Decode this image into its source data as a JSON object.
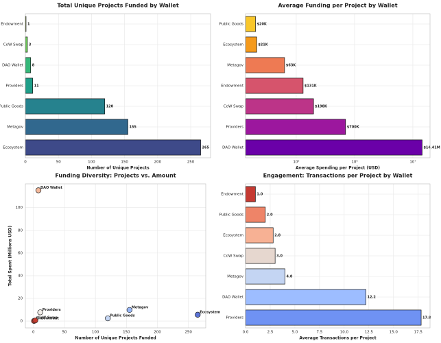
{
  "chart_data": [
    {
      "type": "barh",
      "title": "Total Unique Projects Funded by Wallet",
      "xlabel": "Number of Unique Projects",
      "categories": [
        "Endowment",
        "CoW Swap",
        "DAO Wallet",
        "Providers",
        "Public Goods",
        "Metagov",
        "Ecosystem"
      ],
      "values": [
        1,
        3,
        8,
        11,
        120,
        155,
        265
      ],
      "colors": [
        "#b5de2b",
        "#6ece58",
        "#35b779",
        "#1f9e89",
        "#26828e",
        "#31688e",
        "#3e4a89"
      ],
      "xlim": [
        0,
        280
      ],
      "xticks": [
        0,
        50,
        100,
        150,
        200,
        250
      ],
      "grid": true
    },
    {
      "type": "barh",
      "title": "Average Funding per Project by Wallet",
      "xlabel": "Average Spending per Project (USD)",
      "categories": [
        "Public Goods",
        "Ecosystem",
        "Metagov",
        "Endowment",
        "CoW Swap",
        "Providers",
        "DAO Wallet"
      ],
      "values": [
        20000,
        21000,
        63000,
        131000,
        198000,
        700000,
        14410000
      ],
      "value_labels": [
        "$20K",
        "$21K",
        "$63K",
        "$131K",
        "$198K",
        "$700K",
        "$14.41M"
      ],
      "colors": [
        "#f9c72b",
        "#f59a1b",
        "#ee7a53",
        "#d6546c",
        "#bc3488",
        "#9c179e",
        "#6a00a8"
      ],
      "xscale": "log",
      "xlim": [
        13500,
        19700000
      ],
      "xticks": [
        {
          "value": 100000,
          "label": "10⁵"
        },
        {
          "value": 1000000,
          "label": "10⁶"
        },
        {
          "value": 10000000,
          "label": "10⁷"
        }
      ],
      "grid": true
    },
    {
      "type": "scatter",
      "title": "Funding Diversity: Projects vs. Amount",
      "xlabel": "Number of Unique Projects Funded",
      "ylabel": "Total Spent (Millions USD)",
      "categories": [
        "DAO Wallet",
        "Providers",
        "Endowment",
        "CoW Swap",
        "Public Goods",
        "Metagov",
        "Ecosystem"
      ],
      "x": [
        8,
        11,
        1,
        3,
        120,
        155,
        265
      ],
      "values": [
        115.3,
        7.7,
        0.131,
        0.594,
        2.4,
        9.8,
        5.6
      ],
      "colors": [
        "#f4b89a",
        "#f0ece8",
        "#c0382b",
        "#c53c2f",
        "#c4d5f3",
        "#97b6f5",
        "#5b73d6"
      ],
      "xlim": [
        -13,
        278
      ],
      "xticks": [
        0,
        50,
        100,
        150,
        200,
        250
      ],
      "ylim": [
        -6,
        121
      ],
      "yticks": [
        0,
        20,
        40,
        60,
        80,
        100
      ],
      "grid": true
    },
    {
      "type": "barh",
      "title": "Engagement: Transactions per Project by Wallet",
      "xlabel": "Average Transactions per Project",
      "categories": [
        "Endowment",
        "Public Goods",
        "Ecosystem",
        "CoW Swap",
        "Metagov",
        "DAO Wallet",
        "Providers"
      ],
      "values": [
        1.0,
        2.0,
        2.8,
        3.0,
        4.0,
        12.2,
        17.8
      ],
      "value_labels": [
        "1.0",
        "2.0",
        "2.8",
        "3.0",
        "4.0",
        "12.2",
        "17.8"
      ],
      "colors": [
        "#c53a32",
        "#ee8468",
        "#f7b194",
        "#e6d7cf",
        "#c4d5f3",
        "#9dbdff",
        "#6f92f3"
      ],
      "xlim": [
        0,
        18.7
      ],
      "xticks": [
        {
          "value": 0,
          "label": "0.0"
        },
        {
          "value": 2.5,
          "label": "2.5"
        },
        {
          "value": 5,
          "label": "5.0"
        },
        {
          "value": 7.5,
          "label": "7.5"
        },
        {
          "value": 10,
          "label": "10.0"
        },
        {
          "value": 12.5,
          "label": "12.5"
        },
        {
          "value": 15,
          "label": "15.0"
        },
        {
          "value": 17.5,
          "label": "17.5"
        }
      ],
      "grid": true
    }
  ]
}
